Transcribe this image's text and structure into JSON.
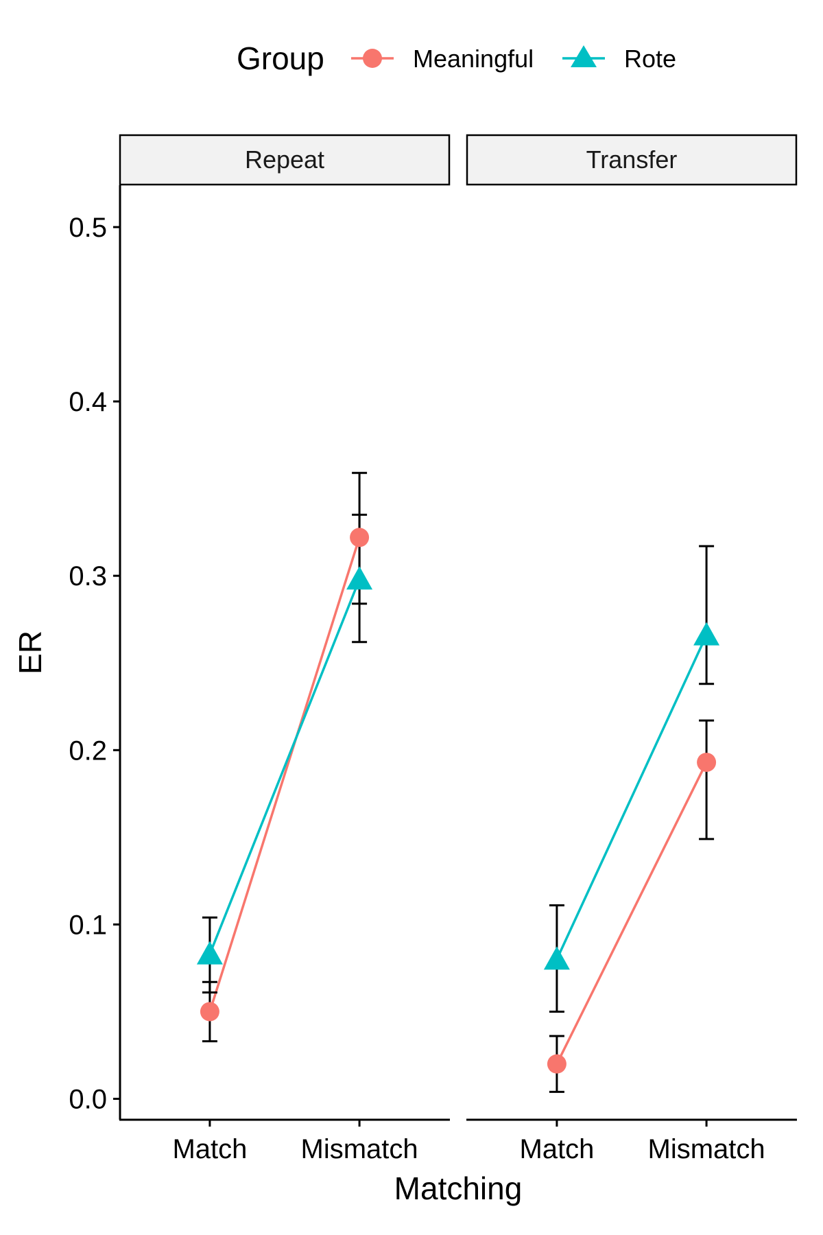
{
  "chart_data": {
    "type": "line",
    "title": "",
    "xlabel": "Matching",
    "ylabel": "ER",
    "ylim": [
      -0.012,
      0.524
    ],
    "yticks": [
      "0.0",
      "0.1",
      "0.2",
      "0.3",
      "0.4",
      "0.5"
    ],
    "categories": [
      "Match",
      "Mismatch"
    ],
    "grid": false,
    "legend": {
      "title": "Group",
      "placement": "top",
      "entries": [
        "Meaningful",
        "Rote"
      ]
    },
    "colors": {
      "Meaningful": "#F8766D",
      "Rote": "#00BFC4",
      "errorbar": "#000000"
    },
    "facets": [
      {
        "label": "Repeat",
        "series": [
          {
            "name": "Meaningful",
            "marker": "circle",
            "values": [
              0.05,
              0.322
            ],
            "lower": [
              0.033,
              0.284
            ],
            "upper": [
              0.067,
              0.359
            ]
          },
          {
            "name": "Rote",
            "marker": "triangle",
            "values": [
              0.083,
              0.298
            ],
            "lower": [
              0.061,
              0.262
            ],
            "upper": [
              0.104,
              0.335
            ]
          }
        ]
      },
      {
        "label": "Transfer",
        "series": [
          {
            "name": "Meaningful",
            "marker": "circle",
            "values": [
              0.02,
              0.193
            ],
            "lower": [
              0.004,
              0.149
            ],
            "upper": [
              0.036,
              0.217
            ]
          },
          {
            "name": "Rote",
            "marker": "triangle",
            "values": [
              0.08,
              0.266
            ],
            "lower": [
              0.05,
              0.238
            ],
            "upper": [
              0.111,
              0.317
            ]
          }
        ]
      }
    ]
  }
}
